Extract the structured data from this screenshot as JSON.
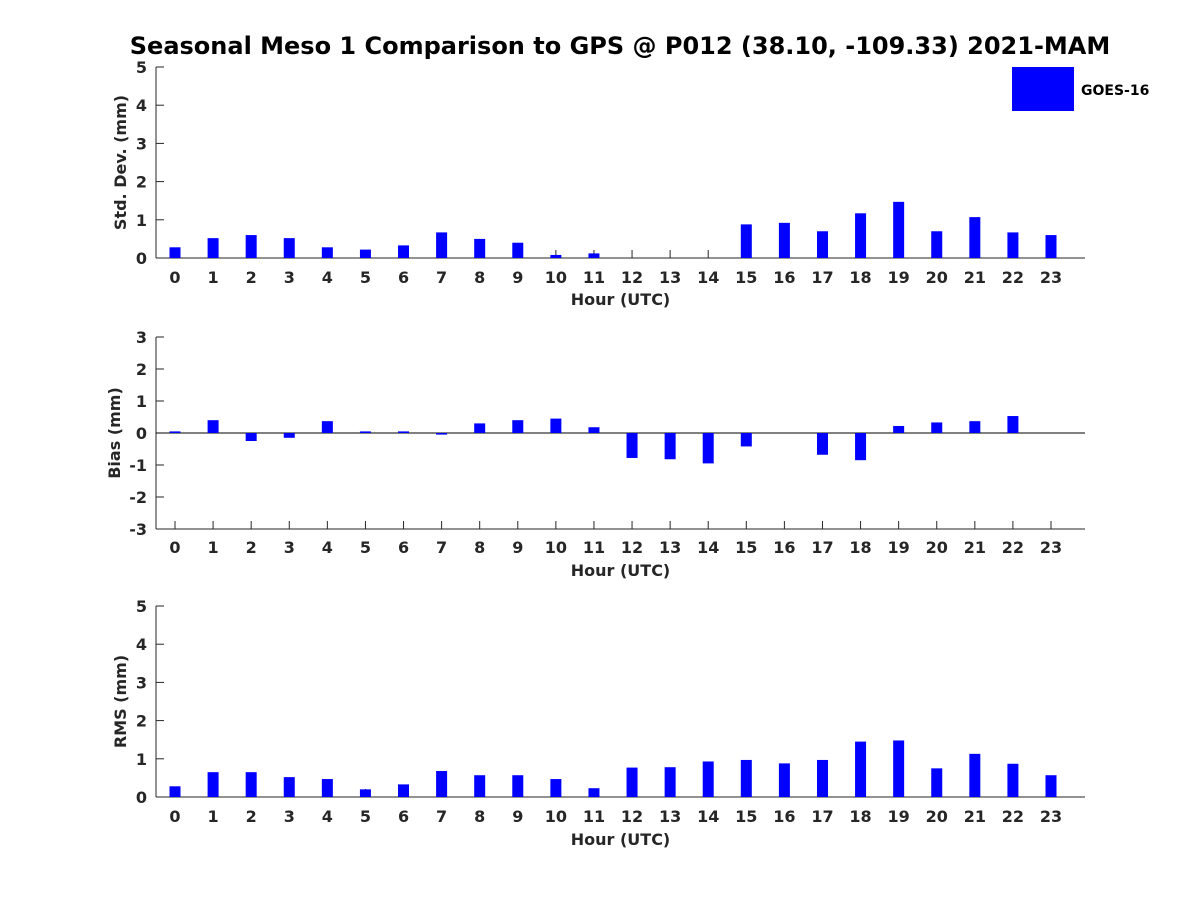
{
  "chart_data": [
    {
      "type": "bar",
      "title": "Seasonal Meso 1 Comparison to GPS @ P012 (38.10, -109.33) 2021-MAM",
      "categories": [
        "0",
        "1",
        "2",
        "3",
        "4",
        "5",
        "6",
        "7",
        "8",
        "9",
        "10",
        "11",
        "12",
        "13",
        "14",
        "15",
        "16",
        "17",
        "18",
        "19",
        "20",
        "21",
        "22",
        "23"
      ],
      "series": [
        {
          "name": "GOES-16",
          "color": "#0000ff",
          "values": [
            0.28,
            0.52,
            0.6,
            0.52,
            0.28,
            0.22,
            0.33,
            0.67,
            0.5,
            0.4,
            0.08,
            0.12,
            null,
            null,
            null,
            0.88,
            0.92,
            0.7,
            1.17,
            1.47,
            0.7,
            1.07,
            0.67,
            0.6
          ]
        }
      ],
      "xlabel": "Hour (UTC)",
      "ylabel": "Std. Dev. (mm)",
      "ylim": [
        0,
        5
      ],
      "yticks": [
        "0",
        "1",
        "2",
        "3",
        "4",
        "5"
      ],
      "legend": {
        "position": "top-right",
        "entries": [
          "GOES-16"
        ]
      }
    },
    {
      "type": "bar",
      "categories": [
        "0",
        "1",
        "2",
        "3",
        "4",
        "5",
        "6",
        "7",
        "8",
        "9",
        "10",
        "11",
        "12",
        "13",
        "14",
        "15",
        "16",
        "17",
        "18",
        "19",
        "20",
        "21",
        "22",
        "23"
      ],
      "series": [
        {
          "name": "GOES-16",
          "color": "#0000ff",
          "values": [
            0.05,
            0.4,
            -0.25,
            -0.15,
            0.37,
            0.05,
            0.05,
            -0.05,
            0.3,
            0.4,
            0.45,
            0.18,
            -0.78,
            -0.82,
            -0.95,
            -0.42,
            0,
            -0.68,
            -0.85,
            0.22,
            0.33,
            0.37,
            0.53,
            0
          ]
        }
      ],
      "xlabel": "Hour (UTC)",
      "ylabel": "Bias (mm)",
      "ylim": [
        -3,
        3
      ],
      "yticks": [
        "-3",
        "-2",
        "-1",
        "0",
        "1",
        "2",
        "3"
      ]
    },
    {
      "type": "bar",
      "categories": [
        "0",
        "1",
        "2",
        "3",
        "4",
        "5",
        "6",
        "7",
        "8",
        "9",
        "10",
        "11",
        "12",
        "13",
        "14",
        "15",
        "16",
        "17",
        "18",
        "19",
        "20",
        "21",
        "22",
        "23"
      ],
      "series": [
        {
          "name": "GOES-16",
          "color": "#0000ff",
          "values": [
            0.28,
            0.65,
            0.65,
            0.52,
            0.47,
            0.2,
            0.33,
            0.68,
            0.57,
            0.57,
            0.47,
            0.23,
            0.77,
            0.78,
            0.93,
            0.97,
            0.88,
            0.97,
            1.45,
            1.48,
            0.75,
            1.13,
            0.87,
            0.57
          ]
        }
      ],
      "xlabel": "Hour (UTC)",
      "ylabel": "RMS (mm)",
      "ylim": [
        0,
        5
      ],
      "yticks": [
        "0",
        "1",
        "2",
        "3",
        "4",
        "5"
      ]
    }
  ]
}
